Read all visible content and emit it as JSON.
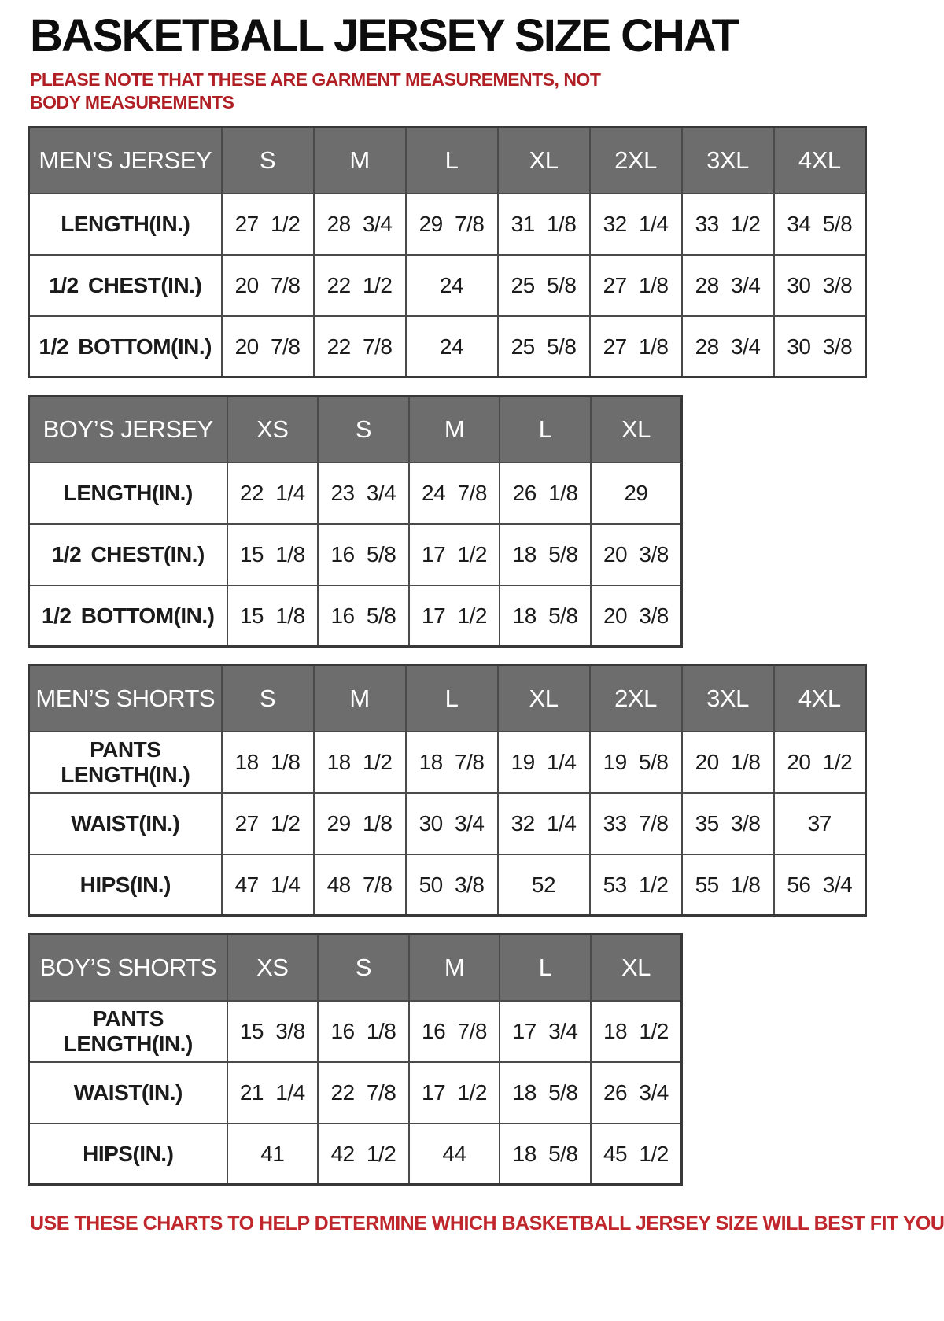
{
  "page": {
    "title": "BASKETBALL JERSEY SIZE CHAT",
    "note_top": "PLEASE NOTE THAT THESE ARE GARMENT MEASUREMENTS, NOT BODY MEASUREMENTS",
    "note_bottom": "USE THESE CHARTS TO HELP DETERMINE WHICH BASKETBALL JERSEY SIZE WILL BEST FIT YOU.",
    "colors": {
      "header_bg": "#6d6d6d",
      "header_text": "#ffffff",
      "border": "#4a4a4a",
      "note_red": "#b01f24",
      "footer_red": "#c0272d",
      "cell_text": "#1b1b1b"
    }
  },
  "tables": [
    {
      "id": "mens-jersey",
      "header": [
        "MEN’S JERSEY",
        "S",
        "M",
        "L",
        "XL",
        "2XL",
        "3XL",
        "4XL"
      ],
      "rows": [
        [
          "LENGTH(IN.)",
          "27 1/2",
          "28 3/4",
          "29 7/8",
          "31 1/8",
          "32 1/4",
          "33 1/2",
          "34 5/8"
        ],
        [
          "1/2 CHEST(IN.)",
          "20 7/8",
          "22 1/2",
          "24",
          "25 5/8",
          "27 1/8",
          "28 3/4",
          "30 3/8"
        ],
        [
          "1/2 BOTTOM(IN.)",
          "20 7/8",
          "22 7/8",
          "24",
          "25 5/8",
          "27 1/8",
          "28 3/4",
          "30 3/8"
        ]
      ]
    },
    {
      "id": "boys-jersey",
      "header": [
        "BOY’S JERSEY",
        "XS",
        "S",
        "M",
        "L",
        "XL"
      ],
      "rows": [
        [
          "LENGTH(IN.)",
          "22 1/4",
          "23 3/4",
          "24 7/8",
          "26 1/8",
          "29"
        ],
        [
          "1/2 CHEST(IN.)",
          "15 1/8",
          "16 5/8",
          "17 1/2",
          "18 5/8",
          "20 3/8"
        ],
        [
          "1/2 BOTTOM(IN.)",
          "15 1/8",
          "16 5/8",
          "17 1/2",
          "18 5/8",
          "20 3/8"
        ]
      ]
    },
    {
      "id": "mens-shorts",
      "header": [
        "MEN’S SHORTS",
        "S",
        "M",
        "L",
        "XL",
        "2XL",
        "3XL",
        "4XL"
      ],
      "rows": [
        [
          "PANTS LENGTH(IN.)",
          "18 1/8",
          "18 1/2",
          "18 7/8",
          "19 1/4",
          "19 5/8",
          "20 1/8",
          "20 1/2"
        ],
        [
          "WAIST(IN.)",
          "27 1/2",
          "29 1/8",
          "30 3/4",
          "32 1/4",
          "33 7/8",
          "35 3/8",
          "37"
        ],
        [
          "HIPS(IN.)",
          "47 1/4",
          "48 7/8",
          "50 3/8",
          "52",
          "53 1/2",
          "55 1/8",
          "56 3/4"
        ]
      ]
    },
    {
      "id": "boys-shorts",
      "header": [
        "BOY’S SHORTS",
        "XS",
        "S",
        "M",
        "L",
        "XL"
      ],
      "rows": [
        [
          "PANTS LENGTH(IN.)",
          "15 3/8",
          "16 1/8",
          "16 7/8",
          "17 3/4",
          "18 1/2"
        ],
        [
          "WAIST(IN.)",
          "21 1/4",
          "22 7/8",
          "17 1/2",
          "18 5/8",
          "26 3/4"
        ],
        [
          "HIPS(IN.)",
          "41",
          "42 1/2",
          "44",
          "18 5/8",
          "45 1/2"
        ]
      ]
    }
  ]
}
